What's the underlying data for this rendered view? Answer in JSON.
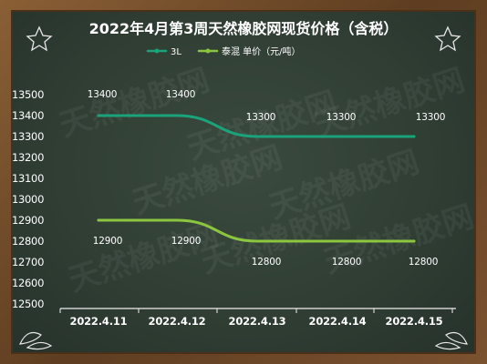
{
  "chart_data": {
    "type": "line",
    "title": "2022年4月第3周天然橡胶网现货价格（含税）",
    "categories": [
      "2022.4.11",
      "2022.4.12",
      "2022.4.13",
      "2022.4.14",
      "2022.4.15"
    ],
    "ylim": [
      12500,
      13500
    ],
    "yticks": [
      13500,
      13400,
      13300,
      13200,
      13100,
      13000,
      12900,
      12800,
      12700,
      12600,
      12500
    ],
    "grid": false,
    "legend_position": "top-center",
    "series": [
      {
        "name": "3L",
        "values": [
          13400,
          13400,
          13300,
          13300,
          13300
        ],
        "color": "#1aa37a"
      },
      {
        "name": "泰混  单价（元/吨）",
        "values": [
          12900,
          12900,
          12800,
          12800,
          12800
        ],
        "color": "#8cc63f"
      }
    ]
  },
  "watermark": "天然橡胶网"
}
